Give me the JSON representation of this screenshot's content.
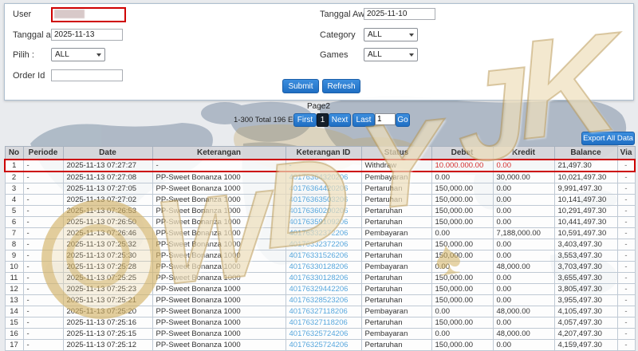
{
  "form": {
    "fields": {
      "user": {
        "label": "User",
        "value": ""
      },
      "tanggal_akhir": {
        "label": "Tanggal akhir",
        "value": "2025-11-13"
      },
      "pilih": {
        "label": "Pilih :",
        "value": "ALL"
      },
      "order_id": {
        "label": "Order Id",
        "value": ""
      },
      "tanggal_awal": {
        "label": "Tanggal Awal",
        "value": "2025-11-10"
      },
      "category": {
        "label": "Category",
        "value": "ALL"
      },
      "games": {
        "label": "Games",
        "value": "ALL"
      }
    },
    "buttons": {
      "submit": "Submit",
      "refresh": "Refresh"
    }
  },
  "pagination": {
    "page_label": "Page2",
    "entries_text": "1-300 Total 196 Entri",
    "first": "First",
    "current": "1",
    "next": "Next",
    "last": "Last",
    "page_input": "1",
    "go": "Go"
  },
  "export_button": "Export All Data",
  "watermark": {
    "letters": [
      "W",
      "D",
      "Y",
      "J",
      "K"
    ],
    "spade": "♠"
  },
  "colors": {
    "accent_blue": "#2b7fd4",
    "alert_red": "#cc0000",
    "link_blue": "#58a7dd",
    "watermark_gold": "#c9a24a"
  },
  "table": {
    "headers": [
      "No",
      "Periode",
      "Date",
      "Keterangan",
      "Keterangan ID",
      "Status",
      "Debet",
      "Kredit",
      "Balance",
      "Via"
    ],
    "rows": [
      {
        "no": "1",
        "periode": "-",
        "date": "2025-11-13 07:27:27",
        "keterangan": "-",
        "id": "-",
        "status": "Withdraw",
        "debet": "10.000.000.00",
        "kredit": "0.00",
        "balance": "21,497.30",
        "via": "-",
        "highlight": true
      },
      {
        "no": "2",
        "periode": "-",
        "date": "2025-11-13 07:27:08",
        "keterangan": "PP-Sweet Bonanza 1000",
        "id": "40176364320206",
        "status": "Pembayaran",
        "debet": "0.00",
        "kredit": "30,000.00",
        "balance": "10,021,497.30",
        "via": "-"
      },
      {
        "no": "3",
        "periode": "-",
        "date": "2025-11-13 07:27:05",
        "keterangan": "PP-Sweet Bonanza 1000",
        "id": "40176364420206",
        "status": "Pertaruhan",
        "debet": "150,000.00",
        "kredit": "0.00",
        "balance": "9,991,497.30",
        "via": "-"
      },
      {
        "no": "4",
        "periode": "-",
        "date": "2025-11-13 07:27:02",
        "keterangan": "PP-Sweet Bonanza 1000",
        "id": "40176363503206",
        "status": "Pertaruhan",
        "debet": "150,000.00",
        "kredit": "0.00",
        "balance": "10,141,497.30",
        "via": "-"
      },
      {
        "no": "5",
        "periode": "-",
        "date": "2025-11-13 07:26:53",
        "keterangan": "PP-Sweet Bonanza 1000",
        "id": "40176360200206",
        "status": "Pertaruhan",
        "debet": "150,000.00",
        "kredit": "0.00",
        "balance": "10,291,497.30",
        "via": "-"
      },
      {
        "no": "6",
        "periode": "-",
        "date": "2025-11-13 07:26:50",
        "keterangan": "PP-Sweet Bonanza 1000",
        "id": "40176359109206",
        "status": "Pertaruhan",
        "debet": "150,000.00",
        "kredit": "0.00",
        "balance": "10,441,497.30",
        "via": "-"
      },
      {
        "no": "7",
        "periode": "-",
        "date": "2025-11-13 07:26:46",
        "keterangan": "PP-Sweet Bonanza 1000",
        "id": "40176332372206",
        "status": "Pembayaran",
        "debet": "0.00",
        "kredit": "7,188,000.00",
        "balance": "10,591,497.30",
        "via": "-"
      },
      {
        "no": "8",
        "periode": "-",
        "date": "2025-11-13 07:25:32",
        "keterangan": "PP-Sweet Bonanza 1000",
        "id": "40176332372206",
        "status": "Pertaruhan",
        "debet": "150,000.00",
        "kredit": "0.00",
        "balance": "3,403,497.30",
        "via": "-"
      },
      {
        "no": "9",
        "periode": "-",
        "date": "2025-11-13 07:25:30",
        "keterangan": "PP-Sweet Bonanza 1000",
        "id": "40176331526206",
        "status": "Pertaruhan",
        "debet": "150,000.00",
        "kredit": "0.00",
        "balance": "3,553,497.30",
        "via": "-"
      },
      {
        "no": "10",
        "periode": "-",
        "date": "2025-11-13 07:25:28",
        "keterangan": "PP-Sweet Bonanza 1000",
        "id": "40176330128206",
        "status": "Pembayaran",
        "debet": "0.00",
        "kredit": "48,000.00",
        "balance": "3,703,497.30",
        "via": "-"
      },
      {
        "no": "11",
        "periode": "-",
        "date": "2025-11-13 07:25:25",
        "keterangan": "PP-Sweet Bonanza 1000",
        "id": "40176330128206",
        "status": "Pertaruhan",
        "debet": "150,000.00",
        "kredit": "0.00",
        "balance": "3,655,497.30",
        "via": "-"
      },
      {
        "no": "12",
        "periode": "-",
        "date": "2025-11-13 07:25:23",
        "keterangan": "PP-Sweet Bonanza 1000",
        "id": "40176329442206",
        "status": "Pertaruhan",
        "debet": "150,000.00",
        "kredit": "0.00",
        "balance": "3,805,497.30",
        "via": "-"
      },
      {
        "no": "13",
        "periode": "-",
        "date": "2025-11-13 07:25:21",
        "keterangan": "PP-Sweet Bonanza 1000",
        "id": "40176328523206",
        "status": "Pertaruhan",
        "debet": "150,000.00",
        "kredit": "0.00",
        "balance": "3,955,497.30",
        "via": "-"
      },
      {
        "no": "14",
        "periode": "-",
        "date": "2025-11-13 07:25:20",
        "keterangan": "PP-Sweet Bonanza 1000",
        "id": "40176327118206",
        "status": "Pembayaran",
        "debet": "0.00",
        "kredit": "48,000.00",
        "balance": "4,105,497.30",
        "via": "-"
      },
      {
        "no": "15",
        "periode": "-",
        "date": "2025-11-13 07:25:16",
        "keterangan": "PP-Sweet Bonanza 1000",
        "id": "40176327118206",
        "status": "Pertaruhan",
        "debet": "150,000.00",
        "kredit": "0.00",
        "balance": "4,057,497.30",
        "via": "-"
      },
      {
        "no": "16",
        "periode": "-",
        "date": "2025-11-13 07:25:15",
        "keterangan": "PP-Sweet Bonanza 1000",
        "id": "40176325724206",
        "status": "Pembayaran",
        "debet": "0.00",
        "kredit": "48,000.00",
        "balance": "4,207,497.30",
        "via": "-"
      },
      {
        "no": "17",
        "periode": "-",
        "date": "2025-11-13 07:25:12",
        "keterangan": "PP-Sweet Bonanza 1000",
        "id": "40176325724206",
        "status": "Pertaruhan",
        "debet": "150,000.00",
        "kredit": "0.00",
        "balance": "4,159,497.30",
        "via": "-"
      }
    ]
  }
}
